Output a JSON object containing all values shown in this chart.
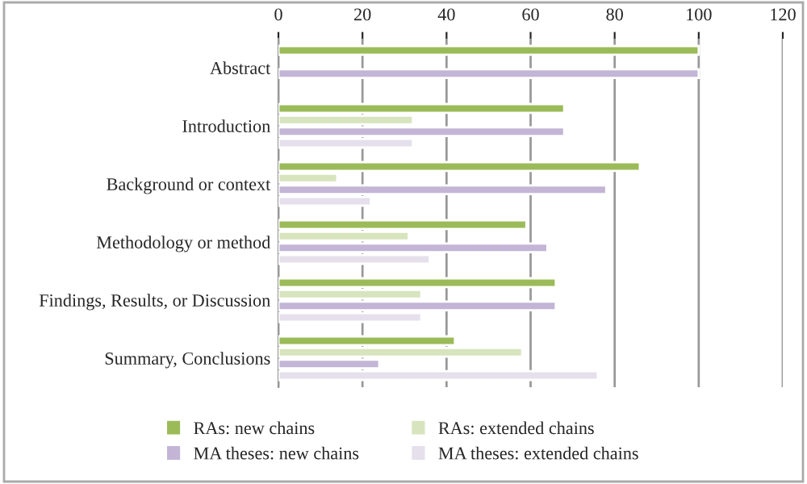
{
  "chart_data": {
    "type": "bar",
    "orientation": "horizontal",
    "categories": [
      "Abstract",
      "Introduction",
      "Background or context",
      "Methodology or method",
      "Findings, Results, or Discussion",
      "Summary, Conclusions"
    ],
    "series": [
      {
        "name": "RAs: new chains",
        "color": "#9bbb59",
        "values": [
          100,
          68,
          86,
          59,
          66,
          42
        ]
      },
      {
        "name": "RAs: extended chains",
        "color": "#d7e4bd",
        "values": [
          null,
          32,
          14,
          31,
          34,
          58
        ]
      },
      {
        "name": "MA theses: new chains",
        "color": "#c3b5d6",
        "values": [
          100,
          68,
          78,
          64,
          66,
          24
        ]
      },
      {
        "name": "MA theses: extended chains",
        "color": "#e5e0ec",
        "values": [
          null,
          32,
          22,
          36,
          34,
          76
        ]
      }
    ],
    "xlim": [
      0,
      120
    ],
    "xticks": [
      0,
      20,
      40,
      60,
      80,
      100,
      120
    ],
    "grid": "x",
    "legend": "bottom"
  }
}
